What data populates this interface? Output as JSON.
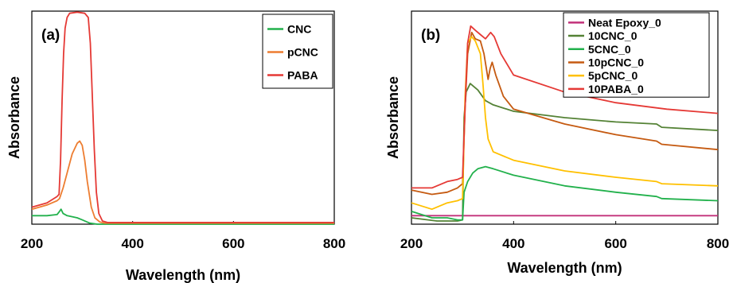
{
  "chart_data": [
    {
      "type": "line",
      "panel_label": "(a)",
      "xlabel": "Wavelength (nm)",
      "ylabel": "Absorbance",
      "xlim": [
        200,
        800
      ],
      "ylim": [
        0,
        1.0
      ],
      "x_ticks": [
        "200",
        "400",
        "600",
        "800"
      ],
      "legend_position": "top-right",
      "grid": false,
      "series": [
        {
          "name": "CNC",
          "color": "#22b14c",
          "points": [
            [
              200,
              0.04
            ],
            [
              230,
              0.04
            ],
            [
              250,
              0.045
            ],
            [
              255,
              0.06
            ],
            [
              258,
              0.07
            ],
            [
              262,
              0.05
            ],
            [
              270,
              0.04
            ],
            [
              280,
              0.035
            ],
            [
              290,
              0.03
            ],
            [
              300,
              0.02
            ],
            [
              315,
              0.005
            ],
            [
              330,
              0.0
            ],
            [
              800,
              0.0
            ]
          ]
        },
        {
          "name": "pCNC",
          "color": "#ed7d31",
          "points": [
            [
              200,
              0.07
            ],
            [
              230,
              0.09
            ],
            [
              250,
              0.11
            ],
            [
              255,
              0.12
            ],
            [
              262,
              0.17
            ],
            [
              270,
              0.24
            ],
            [
              280,
              0.33
            ],
            [
              290,
              0.38
            ],
            [
              295,
              0.39
            ],
            [
              300,
              0.37
            ],
            [
              305,
              0.3
            ],
            [
              310,
              0.2
            ],
            [
              318,
              0.08
            ],
            [
              325,
              0.03
            ],
            [
              335,
              0.01
            ],
            [
              345,
              0.005
            ],
            [
              800,
              0.005
            ]
          ]
        },
        {
          "name": "PABA",
          "color": "#e53935",
          "points": [
            [
              200,
              0.08
            ],
            [
              230,
              0.1
            ],
            [
              250,
              0.13
            ],
            [
              254,
              0.14
            ],
            [
              257,
              0.3
            ],
            [
              260,
              0.58
            ],
            [
              263,
              0.8
            ],
            [
              266,
              0.92
            ],
            [
              270,
              0.97
            ],
            [
              275,
              0.99
            ],
            [
              290,
              0.995
            ],
            [
              305,
              0.99
            ],
            [
              312,
              0.97
            ],
            [
              316,
              0.85
            ],
            [
              320,
              0.6
            ],
            [
              324,
              0.35
            ],
            [
              328,
              0.15
            ],
            [
              333,
              0.05
            ],
            [
              340,
              0.015
            ],
            [
              350,
              0.008
            ],
            [
              800,
              0.008
            ]
          ]
        }
      ]
    },
    {
      "type": "line",
      "panel_label": "(b)",
      "xlabel": "Wavelength (nm)",
      "ylabel": "Absorbance",
      "xlim": [
        200,
        800
      ],
      "ylim": [
        0,
        1.0
      ],
      "x_ticks": [
        "200",
        "400",
        "600",
        "800"
      ],
      "legend_position": "top-right",
      "grid": false,
      "series": [
        {
          "name": "Neat Epoxy_0",
          "color": "#c2317a",
          "points": [
            [
              200,
              0.04
            ],
            [
              300,
              0.04
            ],
            [
              400,
              0.04
            ],
            [
              500,
              0.04
            ],
            [
              600,
              0.04
            ],
            [
              700,
              0.04
            ],
            [
              800,
              0.04
            ]
          ]
        },
        {
          "name": "10CNC_0",
          "color": "#548235",
          "points": [
            [
              200,
              0.03
            ],
            [
              250,
              0.015
            ],
            [
              290,
              0.015
            ],
            [
              300,
              0.02
            ],
            [
              303,
              0.5
            ],
            [
              307,
              0.62
            ],
            [
              315,
              0.66
            ],
            [
              330,
              0.63
            ],
            [
              345,
              0.58
            ],
            [
              360,
              0.56
            ],
            [
              400,
              0.53
            ],
            [
              500,
              0.5
            ],
            [
              600,
              0.48
            ],
            [
              680,
              0.47
            ],
            [
              690,
              0.455
            ],
            [
              800,
              0.44
            ]
          ]
        },
        {
          "name": "5CNC_0",
          "color": "#22b14c",
          "points": [
            [
              200,
              0.06
            ],
            [
              240,
              0.03
            ],
            [
              270,
              0.03
            ],
            [
              290,
              0.02
            ],
            [
              300,
              0.02
            ],
            [
              303,
              0.15
            ],
            [
              310,
              0.2
            ],
            [
              320,
              0.24
            ],
            [
              330,
              0.26
            ],
            [
              345,
              0.27
            ],
            [
              360,
              0.26
            ],
            [
              400,
              0.23
            ],
            [
              500,
              0.18
            ],
            [
              600,
              0.15
            ],
            [
              680,
              0.13
            ],
            [
              690,
              0.12
            ],
            [
              800,
              0.11
            ]
          ]
        },
        {
          "name": "10pCNC_0",
          "color": "#c55a11",
          "points": [
            [
              200,
              0.16
            ],
            [
              240,
              0.14
            ],
            [
              270,
              0.15
            ],
            [
              290,
              0.17
            ],
            [
              300,
              0.19
            ],
            [
              305,
              0.55
            ],
            [
              310,
              0.8
            ],
            [
              318,
              0.9
            ],
            [
              325,
              0.87
            ],
            [
              335,
              0.86
            ],
            [
              342,
              0.8
            ],
            [
              346,
              0.74
            ],
            [
              350,
              0.68
            ],
            [
              354,
              0.73
            ],
            [
              358,
              0.76
            ],
            [
              365,
              0.7
            ],
            [
              380,
              0.6
            ],
            [
              400,
              0.54
            ],
            [
              500,
              0.47
            ],
            [
              600,
              0.42
            ],
            [
              680,
              0.39
            ],
            [
              690,
              0.375
            ],
            [
              800,
              0.35
            ]
          ]
        },
        {
          "name": "5pCNC_0",
          "color": "#ffc000",
          "points": [
            [
              200,
              0.1
            ],
            [
              240,
              0.07
            ],
            [
              270,
              0.1
            ],
            [
              290,
              0.11
            ],
            [
              300,
              0.12
            ],
            [
              305,
              0.6
            ],
            [
              310,
              0.85
            ],
            [
              318,
              0.88
            ],
            [
              325,
              0.86
            ],
            [
              335,
              0.8
            ],
            [
              340,
              0.66
            ],
            [
              345,
              0.5
            ],
            [
              350,
              0.4
            ],
            [
              360,
              0.34
            ],
            [
              400,
              0.3
            ],
            [
              500,
              0.25
            ],
            [
              600,
              0.22
            ],
            [
              680,
              0.2
            ],
            [
              690,
              0.19
            ],
            [
              800,
              0.18
            ]
          ]
        },
        {
          "name": "10PABA_0",
          "color": "#e53935",
          "points": [
            [
              200,
              0.17
            ],
            [
              240,
              0.17
            ],
            [
              270,
              0.2
            ],
            [
              290,
              0.21
            ],
            [
              300,
              0.22
            ],
            [
              305,
              0.55
            ],
            [
              310,
              0.85
            ],
            [
              316,
              0.93
            ],
            [
              325,
              0.91
            ],
            [
              335,
              0.89
            ],
            [
              345,
              0.87
            ],
            [
              355,
              0.9
            ],
            [
              362,
              0.88
            ],
            [
              375,
              0.8
            ],
            [
              400,
              0.7
            ],
            [
              500,
              0.62
            ],
            [
              600,
              0.57
            ],
            [
              700,
              0.54
            ],
            [
              800,
              0.52
            ]
          ]
        }
      ]
    }
  ]
}
